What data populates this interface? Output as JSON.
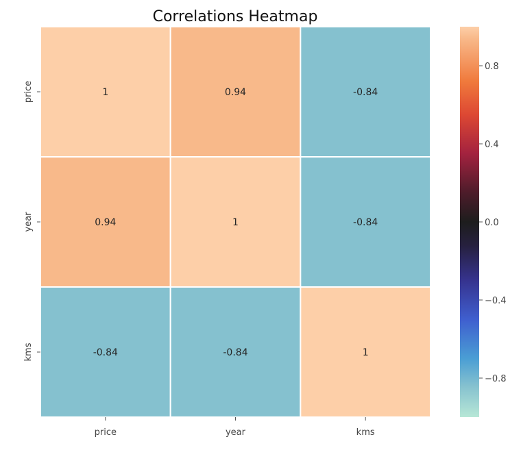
{
  "chart_data": {
    "type": "heatmap",
    "title": "Correlations Heatmap",
    "xlabel": "",
    "ylabel": "",
    "x_categories": [
      "price",
      "year",
      "kms"
    ],
    "y_categories": [
      "price",
      "year",
      "kms"
    ],
    "values": [
      [
        1,
        0.94,
        -0.84
      ],
      [
        0.94,
        1,
        -0.84
      ],
      [
        -0.84,
        -0.84,
        1
      ]
    ],
    "annotations": [
      [
        "1",
        "0.94",
        "-0.84"
      ],
      [
        "0.94",
        "1",
        "-0.84"
      ],
      [
        "-0.84",
        "-0.84",
        "1"
      ]
    ],
    "colorbar": {
      "range": [
        -1,
        1
      ],
      "ticks": [
        0.8,
        0.4,
        0.0,
        -0.4,
        -0.8
      ],
      "tick_labels": [
        "0.8",
        "0.4",
        "0.0",
        "−0.4",
        "−0.8"
      ],
      "colormap": "icefire",
      "stops": [
        {
          "v": -1.0,
          "color": "#b7e7d6"
        },
        {
          "v": -0.84,
          "color": "#85c1cf"
        },
        {
          "v": -0.7,
          "color": "#4a9ed4"
        },
        {
          "v": -0.5,
          "color": "#3f5fcf"
        },
        {
          "v": -0.3,
          "color": "#36338f"
        },
        {
          "v": -0.12,
          "color": "#26203e"
        },
        {
          "v": 0.0,
          "color": "#1d1d1d"
        },
        {
          "v": 0.15,
          "color": "#4d1c2a"
        },
        {
          "v": 0.35,
          "color": "#a3223f"
        },
        {
          "v": 0.55,
          "color": "#dd4833"
        },
        {
          "v": 0.72,
          "color": "#f07a3c"
        },
        {
          "v": 0.94,
          "color": "#f8b98a"
        },
        {
          "v": 1.0,
          "color": "#fdcfa8"
        }
      ]
    },
    "grid": false,
    "legend": "colorbar-right"
  }
}
